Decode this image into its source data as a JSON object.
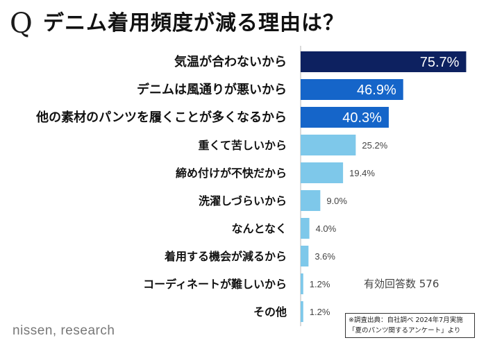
{
  "header": {
    "q_mark": "Q",
    "title": "デニム着用頻度が減る理由は？"
  },
  "chart_data": {
    "type": "bar",
    "orientation": "horizontal",
    "unit": "%",
    "categories": [
      "気温が合わないから",
      "デニムは風通りが悪いから",
      "他の素材のパンツを履くことが多くなるから",
      "重くて苦しいから",
      "締め付けが不快だから",
      "洗濯しづらいから",
      "なんとなく",
      "着用する機会が減るから",
      "コーディネートが難しいから",
      "その他"
    ],
    "values": [
      75.7,
      46.9,
      40.3,
      25.2,
      19.4,
      9.0,
      4.0,
      3.6,
      1.2,
      1.2
    ],
    "value_labels": [
      "75.7%",
      "46.9%",
      "40.3%",
      "25.2%",
      "19.4%",
      "9.0%",
      "4.0%",
      "3.6%",
      "1.2%",
      "1.2%"
    ],
    "bar_colors": [
      "#0d2160",
      "#1565c9",
      "#1565c9",
      "#7ec8ea",
      "#7ec8ea",
      "#7ec8ea",
      "#7ec8ea",
      "#7ec8ea",
      "#7ec8ea",
      "#7ec8ea"
    ],
    "highlight_top": 3,
    "xlim": [
      0,
      80
    ],
    "grid": false
  },
  "notes": {
    "respondents": "有効回答数 576",
    "source_line1": "※調査出典：自社調べ  2024年7月実施",
    "source_line2": "「夏のパンツ関するアンケート」より"
  },
  "brand": "nissen, research"
}
